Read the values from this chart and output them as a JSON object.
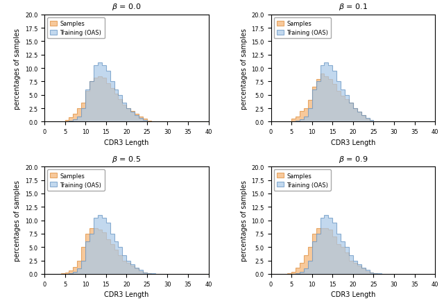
{
  "betas": [
    0.0,
    0.1,
    0.5,
    0.9
  ],
  "xlim": [
    0,
    40
  ],
  "ylim": [
    0,
    20.0
  ],
  "yticks": [
    0.0,
    2.5,
    5.0,
    7.5,
    10.0,
    12.5,
    15.0,
    17.5,
    20.0
  ],
  "xticks": [
    0,
    5,
    10,
    15,
    20,
    25,
    30,
    35,
    40
  ],
  "xlabel": "CDR3 Length",
  "ylabel": "percentages of samples",
  "legend_labels": [
    "Samples",
    "Training (OAS)"
  ],
  "samples_color": "#f5b87a",
  "samples_edge": "#e09040",
  "training_color": "#a8c8e8",
  "training_edge": "#6090c0",
  "training_alpha": 0.7,
  "samples_alpha": 0.75,
  "bin_width": 1,
  "training_hist": [
    0.0,
    0.0,
    0.0,
    0.0,
    0.0,
    0.0,
    0.15,
    0.4,
    1.0,
    2.5,
    6.0,
    7.5,
    10.5,
    11.0,
    10.5,
    9.5,
    7.5,
    6.0,
    5.0,
    3.5,
    2.5,
    1.8,
    1.2,
    0.7,
    0.3,
    0.1,
    0.05,
    0,
    0,
    0,
    0,
    0,
    0,
    0,
    0,
    0,
    0,
    0,
    0,
    0
  ],
  "samples_beta00": [
    0.0,
    0.0,
    0.0,
    0.0,
    0.05,
    0.3,
    0.8,
    1.5,
    2.5,
    3.5,
    5.8,
    7.5,
    8.2,
    8.5,
    8.2,
    7.2,
    6.2,
    5.2,
    4.2,
    3.2,
    2.5,
    2.0,
    1.5,
    1.0,
    0.5,
    0.2,
    0.1,
    0.05,
    0,
    0,
    0,
    0,
    0,
    0,
    0,
    0,
    0,
    0,
    0,
    0
  ],
  "samples_beta01": [
    0.0,
    0.0,
    0.0,
    0.0,
    0.1,
    0.5,
    1.0,
    2.0,
    2.5,
    4.0,
    6.5,
    8.0,
    9.0,
    8.5,
    8.0,
    7.0,
    5.8,
    4.8,
    4.2,
    3.5,
    2.5,
    1.8,
    1.2,
    0.6,
    0.2,
    0.1,
    0.05,
    0,
    0,
    0,
    0,
    0,
    0,
    0,
    0,
    0,
    0,
    0,
    0,
    0
  ],
  "samples_beta05": [
    0.0,
    0.0,
    0.0,
    0.0,
    0.05,
    0.2,
    0.6,
    1.3,
    2.5,
    5.0,
    7.5,
    8.5,
    8.5,
    8.2,
    7.8,
    6.5,
    5.5,
    4.5,
    3.5,
    2.5,
    2.0,
    1.5,
    1.0,
    0.5,
    0.2,
    0.1,
    0,
    0,
    0,
    0,
    0,
    0,
    0,
    0,
    0,
    0,
    0,
    0,
    0,
    0
  ],
  "samples_beta09": [
    0.0,
    0.0,
    0.0,
    0.0,
    0.05,
    0.4,
    1.2,
    2.0,
    3.5,
    5.0,
    7.5,
    8.5,
    8.5,
    8.5,
    8.2,
    7.0,
    5.5,
    5.0,
    4.0,
    2.5,
    2.0,
    1.5,
    1.0,
    0.5,
    0.3,
    0.1,
    0,
    0,
    0,
    0,
    0,
    0,
    0,
    0,
    0,
    0,
    0,
    0,
    0,
    0
  ]
}
